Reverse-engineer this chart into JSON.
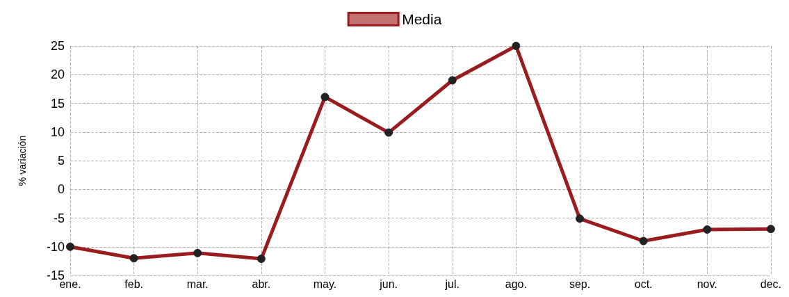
{
  "chart_data": {
    "type": "line",
    "ylabel": "% variación",
    "categories": [
      "ene.",
      "feb.",
      "mar.",
      "abr.",
      "may.",
      "jun.",
      "jul.",
      "ago.",
      "sep.",
      "oct.",
      "nov.",
      "dec."
    ],
    "series": [
      {
        "name": "Media",
        "color": "#9b1c1f",
        "values": [
          -10,
          -12,
          -11.1,
          -12.1,
          16.1,
          9.9,
          19,
          25,
          -5.1,
          -9,
          -7,
          -6.9
        ]
      }
    ],
    "ylim": [
      -15,
      25
    ],
    "yticks": [
      -15,
      -10,
      -5,
      0,
      5,
      10,
      15,
      20,
      25
    ],
    "grid": true,
    "legend": "top",
    "marker": "circle",
    "line_style": "solid"
  }
}
